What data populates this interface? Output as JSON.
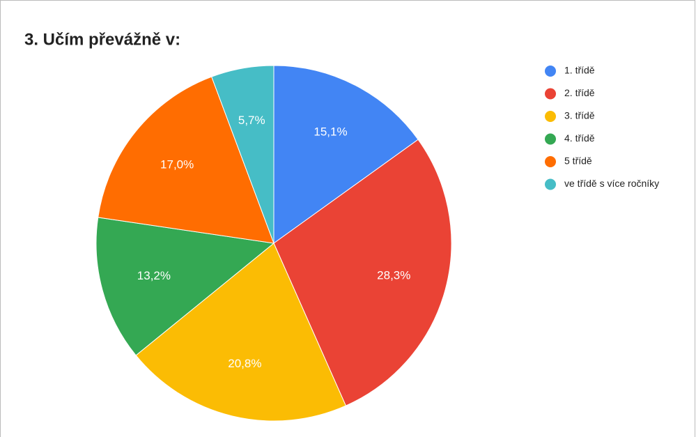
{
  "chart_data": {
    "type": "pie",
    "title": "3. Učím převážně v:",
    "categories": [
      "1. třídě",
      "2. třídě",
      "3. třídě",
      "4. třídě",
      "5 třídě",
      "ve třídě s více ročníky"
    ],
    "values": [
      15.1,
      28.3,
      20.8,
      13.2,
      17.0,
      5.7
    ],
    "value_labels": [
      "15,1%",
      "28,3%",
      "20,8%",
      "13,2%",
      "17,0%",
      "5,7%"
    ],
    "colors": [
      "#4285f4",
      "#ea4335",
      "#fbbc04",
      "#34a853",
      "#ff6d01",
      "#46bdc6"
    ],
    "legend": "right"
  }
}
